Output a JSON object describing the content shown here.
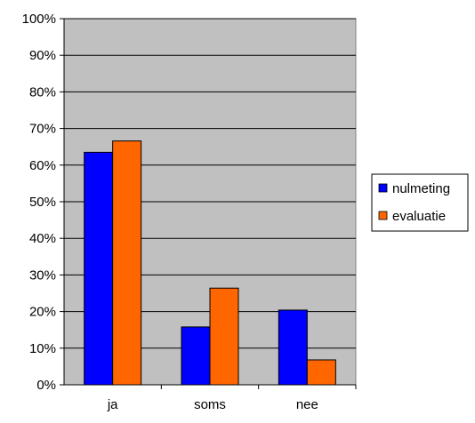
{
  "chart_data": {
    "type": "bar",
    "categories": [
      "ja",
      "soms",
      "nee"
    ],
    "series": [
      {
        "name": "nulmeting",
        "values": [
          63.5,
          15.8,
          20.4
        ],
        "color": "#0000FF"
      },
      {
        "name": "evaluatie",
        "values": [
          66.6,
          26.4,
          6.8
        ],
        "color": "#FF6600"
      }
    ],
    "ylim": [
      0,
      100
    ],
    "yticks": [
      0,
      10,
      20,
      30,
      40,
      50,
      60,
      70,
      80,
      90,
      100
    ],
    "ytick_labels": [
      "0%",
      "10%",
      "20%",
      "30%",
      "40%",
      "50%",
      "60%",
      "70%",
      "80%",
      "90%",
      "100%"
    ],
    "plot_background": "#C0C0C0",
    "grid": true,
    "legend_position": "right"
  }
}
